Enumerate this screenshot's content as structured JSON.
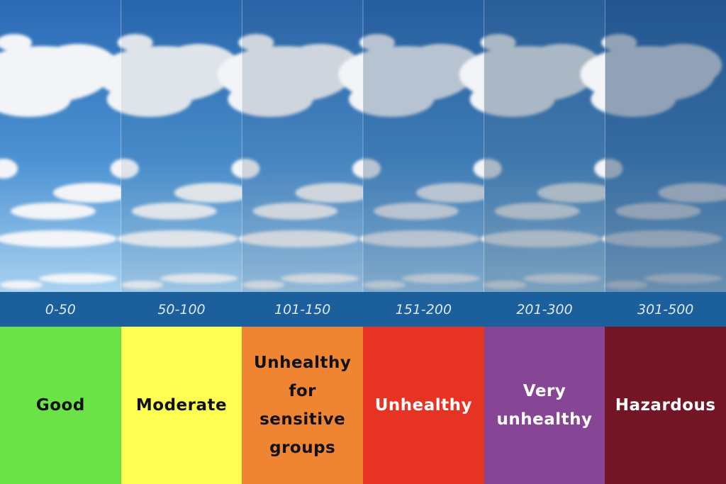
{
  "columns": [
    {
      "range": "0-50",
      "label": "Good",
      "color": "#6be246"
    },
    {
      "range": "50-100",
      "label": "Moderate",
      "color": "#fdfd52"
    },
    {
      "range": "101-150",
      "label": "Unhealthy for sensitive groups",
      "color": "#ef8533"
    },
    {
      "range": "151-200",
      "label": "Unhealthy",
      "color": "#e63323"
    },
    {
      "range": "201-300",
      "label": "Very unhealthy",
      "color": "#874595"
    },
    {
      "range": "301-500",
      "label": "Hazardous",
      "color": "#731525"
    }
  ]
}
